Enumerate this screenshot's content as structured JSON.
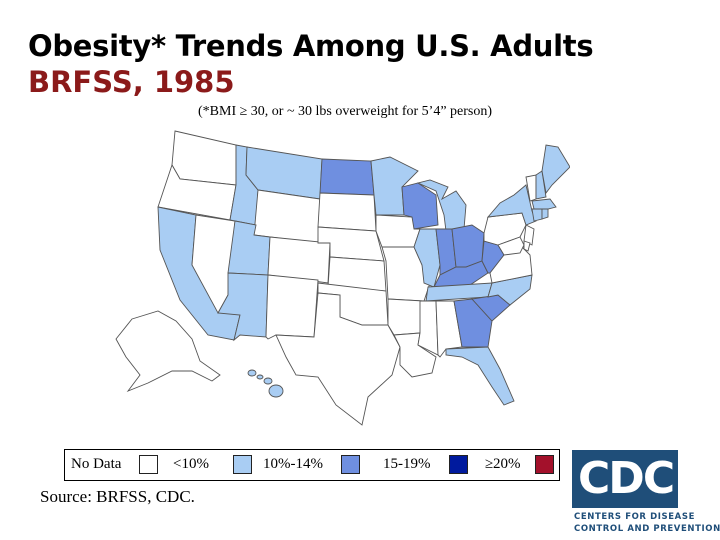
{
  "header": {
    "title": "Obesity* Trends Among U.S. Adults",
    "subtitle": "BRFSS, 1985",
    "footnote": "(*BMI ≥ 30, or ~ 30 lbs overweight for 5’4” person)"
  },
  "legend": [
    {
      "label": "No Data",
      "color": "#ffffff"
    },
    {
      "label": "<10%",
      "color": "#a9cdf3"
    },
    {
      "label": "10%-14%",
      "color": "#6f8fe0"
    },
    {
      "label": "15-19%",
      "color": "#001a9e"
    },
    {
      "label": "20%",
      "color": "#a3112b"
    }
  ],
  "map": {
    "colors": {
      "no_data": "#ffffff",
      "lt10": "#a9cdf3",
      "p10_14": "#6f8fe0"
    },
    "states": {
      "lt10": [
        "CA",
        "UT",
        "AZ",
        "MT",
        "ID",
        "MN",
        "IL",
        "MI",
        "NC",
        "TN",
        "FL",
        "NY",
        "MA",
        "CT",
        "RI",
        "NH",
        "HI",
        "ME"
      ],
      "p10_14": [
        "ND",
        "WI",
        "IN",
        "OH",
        "KY",
        "WV",
        "GA",
        "SC"
      ],
      "no_data": [
        "WA",
        "OR",
        "NV",
        "WY",
        "SD",
        "NE",
        "KS",
        "OK",
        "TX",
        "CO",
        "NM",
        "IA",
        "MO",
        "AR",
        "LA",
        "MS",
        "AL",
        "VA",
        "PA",
        "NJ",
        "DE",
        "MD",
        "VT",
        "AK"
      ]
    }
  },
  "source": "Source: BRFSS, CDC.",
  "logo": {
    "text": "CDC",
    "line1": "CENTERS FOR DISEASE",
    "line2": "CONTROL AND PREVENTION",
    "color": "#1f4e79"
  }
}
